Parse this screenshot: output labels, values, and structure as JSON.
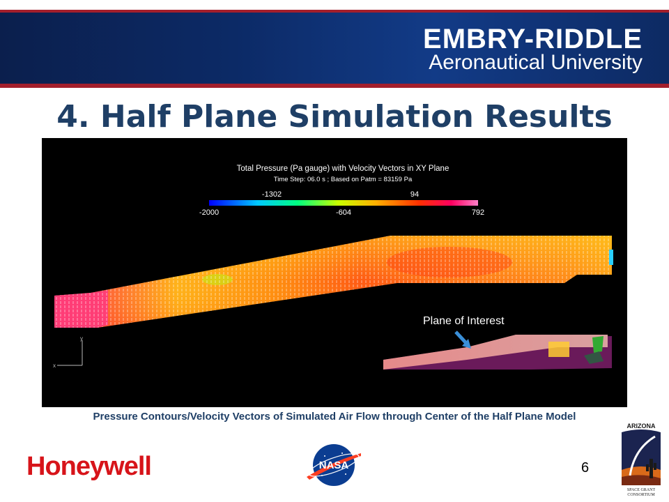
{
  "header": {
    "university_name": "EMBRY-RIDDLE",
    "university_subtitle": "Aeronautical University"
  },
  "slide": {
    "title": "4. Half Plane Simulation Results",
    "caption": "Pressure Contours/Velocity  Vectors of Simulated Air Flow through Center of the Half Plane Model",
    "page_number": "6"
  },
  "simulation": {
    "plot_title": "Total Pressure (Pa gauge) with Velocity Vectors in XY Plane",
    "plot_subtitle": "Time Step: 06.0 s ; Based on Patm = 83159 Pa",
    "colorbar_ticks_top": [
      "-1302",
      "94"
    ],
    "colorbar_ticks_bottom": [
      "-2000",
      "-604",
      "792"
    ],
    "axis_x_label": "x",
    "axis_y_label": "y",
    "inset_label": "Plane of Interest",
    "colors": {
      "background": "#000000",
      "colorbar_stops": [
        "#0000ff",
        "#00c8ff",
        "#00ff80",
        "#c8ff00",
        "#ffb000",
        "#ff3000",
        "#ff0060",
        "#ff80c8"
      ],
      "duct_inlet": "#ff3c78",
      "duct_body": "#ff7a1a",
      "duct_highlight": "#ffd21a"
    }
  },
  "logos": {
    "honeywell": "Honeywell",
    "nasa": "NASA",
    "asgc_top": "ARIZONA",
    "asgc_bottom_1": "SPACE GRANT",
    "asgc_bottom_2": "CONSORTIUM"
  },
  "colors": {
    "banner_blue": "#0c2a66",
    "banner_red": "#a31f2c",
    "title_blue": "#1f3f66",
    "honeywell_red": "#d7141a"
  }
}
